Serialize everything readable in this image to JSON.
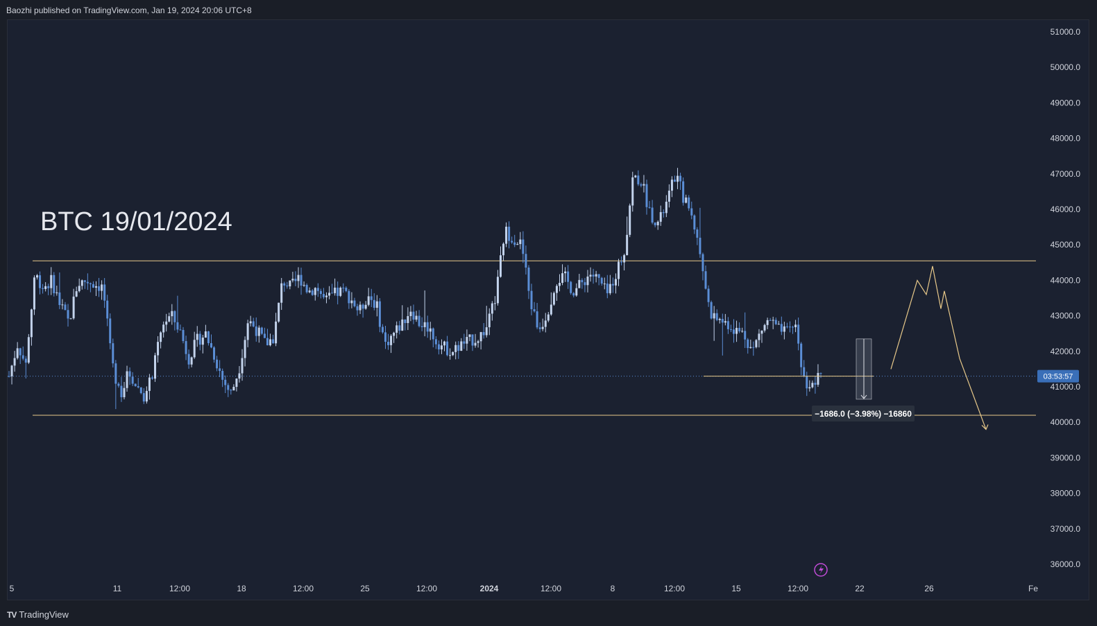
{
  "header": {
    "published": "Baozhi published on TradingView.com, Jan 19, 2024 20:06 UTC+8"
  },
  "footer": {
    "brand": "TradingView",
    "brand_mark": "TV"
  },
  "colors": {
    "candle": "#5b8ed6",
    "candle_light": "#c3d3ec",
    "annotation": "#e8c98a",
    "background": "#1b2130"
  },
  "chart_data": {
    "type": "candlestick",
    "title": "BTC 19/01/2024",
    "ylim": [
      35800,
      51400
    ],
    "y_ticks": [
      "51000.0",
      "50000.0",
      "49000.0",
      "48000.0",
      "47000.0",
      "46000.0",
      "45000.0",
      "44000.0",
      "43000.0",
      "42000.0",
      "41000.0",
      "40000.0",
      "39000.0",
      "38000.0",
      "37000.0",
      "36000.0"
    ],
    "x_ticks": [
      {
        "label": "5",
        "bold": false
      },
      {
        "label": "11",
        "bold": false
      },
      {
        "label": "12:00",
        "bold": false
      },
      {
        "label": "18",
        "bold": false
      },
      {
        "label": "12:00",
        "bold": false
      },
      {
        "label": "25",
        "bold": false
      },
      {
        "label": "12:00",
        "bold": false
      },
      {
        "label": "2024",
        "bold": true
      },
      {
        "label": "12:00",
        "bold": false
      },
      {
        "label": "8",
        "bold": false
      },
      {
        "label": "12:00",
        "bold": false
      },
      {
        "label": "15",
        "bold": false
      },
      {
        "label": "12:00",
        "bold": false
      },
      {
        "label": "22",
        "bold": false
      },
      {
        "label": "26",
        "bold": false
      },
      {
        "label": "Fe",
        "bold": false
      }
    ],
    "current_price": 41300,
    "price_tag": "03:53:57",
    "resistance_level": 44550,
    "support_level": 40200,
    "measure": {
      "label": "−1686.0 (−3.98%) −16860",
      "from": 42350,
      "to": 40650
    },
    "price_path": [
      [
        0,
        41300
      ],
      [
        2,
        42200
      ],
      [
        4,
        41600
      ],
      [
        6,
        44200
      ],
      [
        8,
        43800
      ],
      [
        10,
        44000
      ],
      [
        12,
        43300
      ],
      [
        14,
        42800
      ],
      [
        16,
        43900
      ],
      [
        18,
        44000
      ],
      [
        20,
        43900
      ],
      [
        22,
        43800
      ],
      [
        24,
        41700
      ],
      [
        26,
        40800
      ],
      [
        28,
        41400
      ],
      [
        30,
        41000
      ],
      [
        32,
        40700
      ],
      [
        34,
        41600
      ],
      [
        36,
        42800
      ],
      [
        38,
        43000
      ],
      [
        40,
        42600
      ],
      [
        42,
        41800
      ],
      [
        44,
        42300
      ],
      [
        46,
        42500
      ],
      [
        48,
        41900
      ],
      [
        50,
        41200
      ],
      [
        52,
        40800
      ],
      [
        54,
        41600
      ],
      [
        56,
        42900
      ],
      [
        58,
        42600
      ],
      [
        60,
        42200
      ],
      [
        62,
        42400
      ],
      [
        64,
        44000
      ],
      [
        66,
        43800
      ],
      [
        68,
        44100
      ],
      [
        70,
        43700
      ],
      [
        72,
        43800
      ],
      [
        74,
        43400
      ],
      [
        76,
        43600
      ],
      [
        78,
        43700
      ],
      [
        80,
        43500
      ],
      [
        82,
        43100
      ],
      [
        84,
        43600
      ],
      [
        86,
        43300
      ],
      [
        88,
        42200
      ],
      [
        90,
        42500
      ],
      [
        92,
        42800
      ],
      [
        94,
        43200
      ],
      [
        96,
        42800
      ],
      [
        98,
        42700
      ],
      [
        100,
        42300
      ],
      [
        102,
        42100
      ],
      [
        104,
        42000
      ],
      [
        106,
        42200
      ],
      [
        108,
        42300
      ],
      [
        110,
        42400
      ],
      [
        112,
        42700
      ],
      [
        114,
        43600
      ],
      [
        116,
        45400
      ],
      [
        118,
        45200
      ],
      [
        120,
        45000
      ],
      [
        122,
        43400
      ],
      [
        124,
        42600
      ],
      [
        126,
        43100
      ],
      [
        128,
        44000
      ],
      [
        130,
        44100
      ],
      [
        132,
        43700
      ],
      [
        134,
        43900
      ],
      [
        136,
        44200
      ],
      [
        138,
        44000
      ],
      [
        140,
        43600
      ],
      [
        142,
        44200
      ],
      [
        144,
        44800
      ],
      [
        146,
        46900
      ],
      [
        148,
        46800
      ],
      [
        150,
        45900
      ],
      [
        152,
        45600
      ],
      [
        154,
        46200
      ],
      [
        156,
        47000
      ],
      [
        158,
        46300
      ],
      [
        160,
        45800
      ],
      [
        162,
        44600
      ],
      [
        164,
        43100
      ],
      [
        166,
        42900
      ],
      [
        168,
        42800
      ],
      [
        170,
        42600
      ],
      [
        172,
        42500
      ],
      [
        174,
        42000
      ],
      [
        176,
        42600
      ],
      [
        178,
        42900
      ],
      [
        180,
        42600
      ],
      [
        182,
        42500
      ],
      [
        184,
        42800
      ],
      [
        186,
        41200
      ],
      [
        188,
        41000
      ],
      [
        190,
        41350
      ]
    ],
    "projection": [
      [
        0,
        41500
      ],
      [
        1,
        44000
      ],
      [
        2,
        43600
      ],
      [
        3,
        44400
      ],
      [
        4,
        43200
      ],
      [
        5,
        43700
      ],
      [
        6,
        41800
      ],
      [
        7,
        39800
      ]
    ]
  }
}
